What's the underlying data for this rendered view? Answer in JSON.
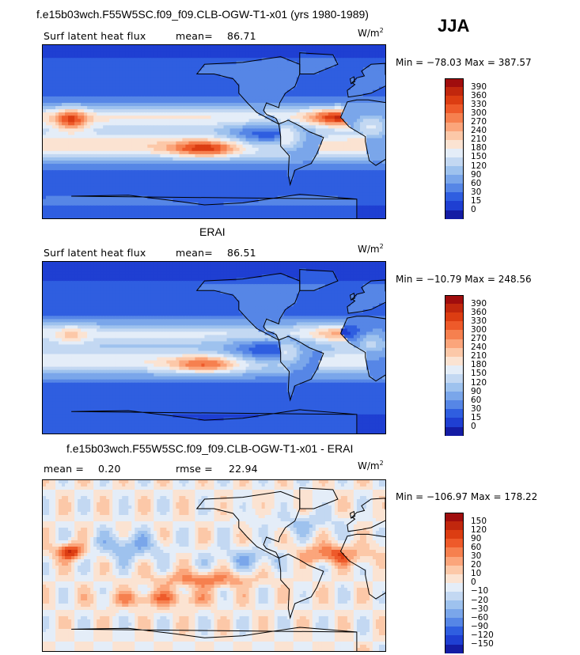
{
  "season": "JJA",
  "panels": [
    {
      "title": "f.e15b03wch.F55W5SC.f09_f09.CLB-OGW-T1-x01 (yrs 1980-1989)",
      "left_text": "Surf latent heat flux",
      "mean_label": "mean=",
      "mean_value": "86.71",
      "units_base": "W/m",
      "units_exp": "2",
      "min_max": "Min = −78.03 Max = 387.57",
      "colorbar": {
        "labels": [
          "390",
          "360",
          "330",
          "300",
          "270",
          "240",
          "210",
          "180",
          "150",
          "120",
          "90",
          "60",
          "30",
          "15",
          "0"
        ],
        "colors": [
          "#a00d0d",
          "#c1270d",
          "#dc3d12",
          "#ee5a2a",
          "#f6804f",
          "#fba57b",
          "#fcc8a8",
          "#fbe3d2",
          "#e4edf8",
          "#c3d8f2",
          "#9ec2ee",
          "#7aa6ea",
          "#5686e6",
          "#2f5ee0",
          "#1f3fd2",
          "#141ca4"
        ]
      },
      "field": "model"
    },
    {
      "title": "ERAI",
      "left_text": "Surf latent heat flux",
      "mean_label": "mean=",
      "mean_value": "86.51",
      "units_base": "W/m",
      "units_exp": "2",
      "min_max": "Min = −10.79 Max = 248.56",
      "colorbar": {
        "labels": [
          "390",
          "360",
          "330",
          "300",
          "270",
          "240",
          "210",
          "180",
          "150",
          "120",
          "90",
          "60",
          "30",
          "15",
          "0"
        ],
        "colors": [
          "#a00d0d",
          "#c1270d",
          "#dc3d12",
          "#ee5a2a",
          "#f6804f",
          "#fba57b",
          "#fcc8a8",
          "#fbe3d2",
          "#e4edf8",
          "#c3d8f2",
          "#9ec2ee",
          "#7aa6ea",
          "#5686e6",
          "#2f5ee0",
          "#1f3fd2",
          "#141ca4"
        ]
      },
      "field": "obs"
    },
    {
      "title": "f.e15b03wch.F55W5SC.f09_f09.CLB-OGW-T1-x01 - ERAI",
      "left_text": "mean =",
      "mean_label": "rmse =",
      "left_value": "0.20",
      "mean_value": "22.94",
      "units_base": "W/m",
      "units_exp": "2",
      "min_max": "Min = −106.97 Max = 178.22",
      "colorbar": {
        "labels": [
          "150",
          "120",
          "90",
          "60",
          "30",
          "20",
          "10",
          "0",
          "−10",
          "−20",
          "−30",
          "−60",
          "−90",
          "−120",
          "−150"
        ],
        "colors": [
          "#a00d0d",
          "#c1270d",
          "#dc3d12",
          "#ee5a2a",
          "#f6804f",
          "#fba57b",
          "#fcc8a8",
          "#fbe3d2",
          "#e4edf8",
          "#c3d8f2",
          "#9ec2ee",
          "#7aa6ea",
          "#5686e6",
          "#2f5ee0",
          "#1f3fd2",
          "#141ca4"
        ]
      },
      "field": "diff"
    }
  ]
}
